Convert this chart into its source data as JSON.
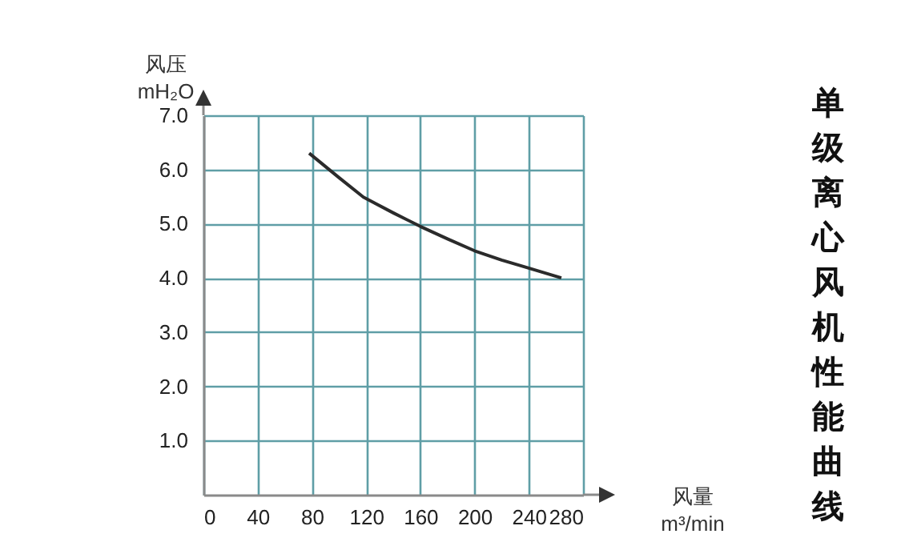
{
  "chart_data": {
    "type": "line",
    "title": "单级离心风机性能曲线",
    "xlabel": "风量\nm³/min",
    "ylabel": "风压\nmH₂O",
    "x": [
      78,
      100,
      118,
      140,
      160,
      180,
      200,
      220,
      236,
      264
    ],
    "series": [
      {
        "color": "#2b2b2b",
        "values": [
          6.3,
          5.85,
          5.49,
          5.2,
          4.95,
          4.72,
          4.5,
          4.33,
          4.21,
          4.0
        ]
      }
    ],
    "xlim": [
      0,
      280
    ],
    "xticks": [
      0,
      40,
      80,
      120,
      160,
      200,
      240,
      280
    ],
    "ylim": [
      0,
      7
    ],
    "yticks": [
      {
        "value": 1,
        "label": "1.0"
      },
      {
        "value": 2,
        "label": "2.0"
      },
      {
        "value": 3,
        "label": "3.0"
      },
      {
        "value": 4,
        "label": "4.0"
      },
      {
        "value": 5,
        "label": "5.0"
      },
      {
        "value": 6,
        "label": "6.0"
      },
      {
        "value": 7,
        "label": "7.0"
      }
    ],
    "grid": true,
    "marker": "none",
    "line_style": "solid"
  }
}
